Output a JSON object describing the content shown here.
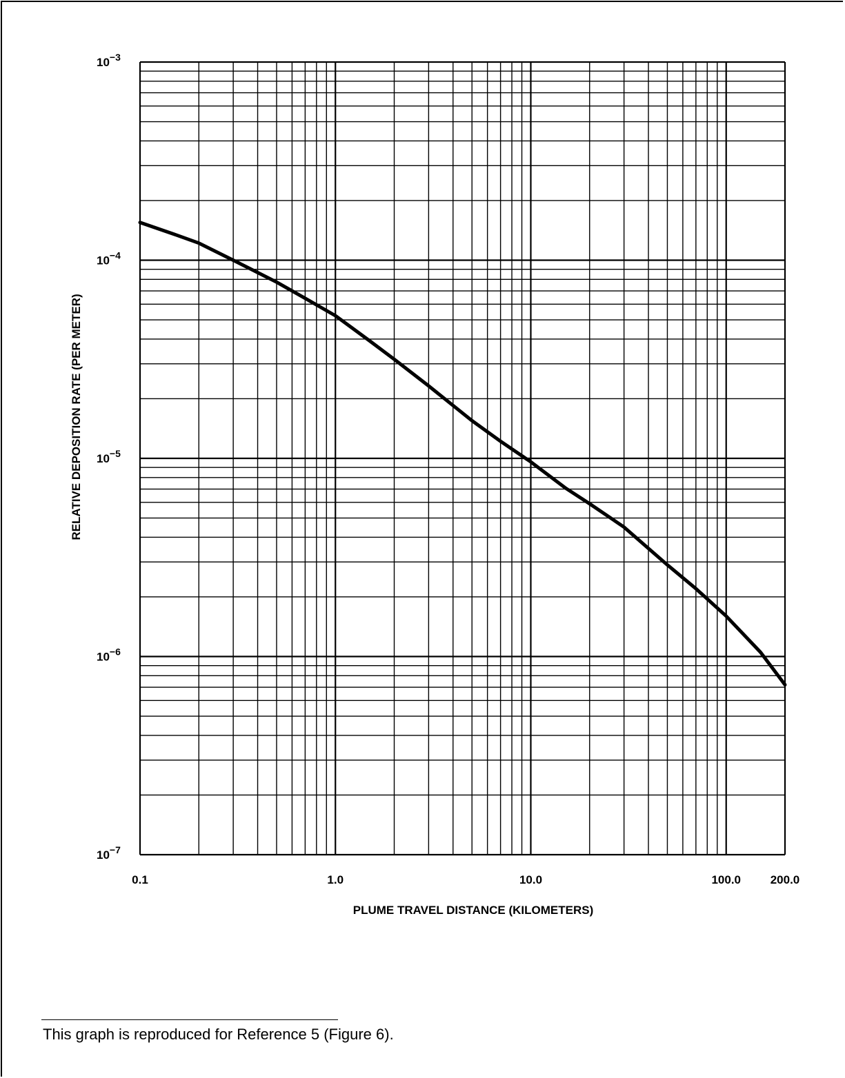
{
  "chart_data": {
    "type": "line",
    "title": "",
    "xlabel": "PLUME TRAVEL DISTANCE (KILOMETERS)",
    "ylabel": "RELATIVE DEPOSITION RATE (PER METER)",
    "x_scale": "log",
    "y_scale": "log",
    "xlim": [
      0.1,
      200
    ],
    "ylim": [
      1e-07,
      0.001
    ],
    "grid": true,
    "x_ticks": [
      {
        "value": 0.1,
        "label": "0.1"
      },
      {
        "value": 1,
        "label": "1.0"
      },
      {
        "value": 10,
        "label": "10.0"
      },
      {
        "value": 100,
        "label": "100.0"
      },
      {
        "value": 200,
        "label": "200.0"
      }
    ],
    "y_ticks": [
      {
        "value": 0.001,
        "base": "10",
        "exp": "-3"
      },
      {
        "value": 0.0001,
        "base": "10",
        "exp": "-4"
      },
      {
        "value": 1e-05,
        "base": "10",
        "exp": "-5"
      },
      {
        "value": 1e-06,
        "base": "10",
        "exp": "-6"
      },
      {
        "value": 1e-07,
        "base": "10",
        "exp": "-7"
      }
    ],
    "series": [
      {
        "x": [
          0.1,
          0.15,
          0.2,
          0.3,
          0.5,
          0.7,
          1.0,
          1.5,
          2,
          3,
          5,
          7,
          10,
          15,
          20,
          30,
          50,
          70,
          100,
          150,
          200
        ],
        "y": [
          0.000155,
          0.000135,
          0.000122,
          0.0001,
          7.75e-05,
          6.42e-05,
          5.25e-05,
          3.91e-05,
          3.16e-05,
          2.32e-05,
          1.55e-05,
          1.22e-05,
          9.6e-06,
          7.1e-06,
          5.9e-06,
          4.5e-06,
          2.9e-06,
          2.2e-06,
          1.6e-06,
          1.05e-06,
          7.2e-07
        ]
      }
    ]
  },
  "footnote": "This graph is reproduced for Reference 5 (Figure 6)."
}
